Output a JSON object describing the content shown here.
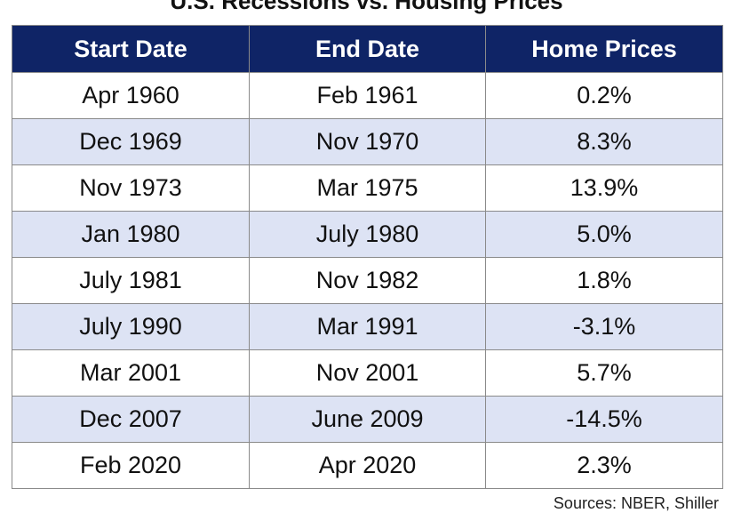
{
  "title": "U.S. Recessions vs. Housing Prices",
  "source": "Sources: NBER, Shiller",
  "chart_data": {
    "type": "table",
    "title": "U.S. Recessions vs. Housing Prices",
    "columns": [
      "Start Date",
      "End Date",
      "Home Prices"
    ],
    "rows": [
      [
        "Apr 1960",
        "Feb 1961",
        "0.2%"
      ],
      [
        "Dec 1969",
        "Nov 1970",
        "8.3%"
      ],
      [
        "Nov 1973",
        "Mar 1975",
        "13.9%"
      ],
      [
        "Jan 1980",
        "July 1980",
        "5.0%"
      ],
      [
        "July 1981",
        "Nov 1982",
        "1.8%"
      ],
      [
        "July 1990",
        "Mar 1991",
        "-3.1%"
      ],
      [
        "Mar 2001",
        "Nov 2001",
        "5.7%"
      ],
      [
        "Dec 2007",
        "June 2009",
        "-14.5%"
      ],
      [
        "Feb 2020",
        "Apr 2020",
        "2.3%"
      ]
    ],
    "home_price_change_pct": [
      0.2,
      8.3,
      13.9,
      5.0,
      1.8,
      -3.1,
      5.7,
      -14.5,
      2.3
    ]
  },
  "colors": {
    "header_bg": "#0f2466",
    "header_text": "#ffffff",
    "shaded_row": "#dde3f4",
    "border": "#8a8a8a"
  }
}
